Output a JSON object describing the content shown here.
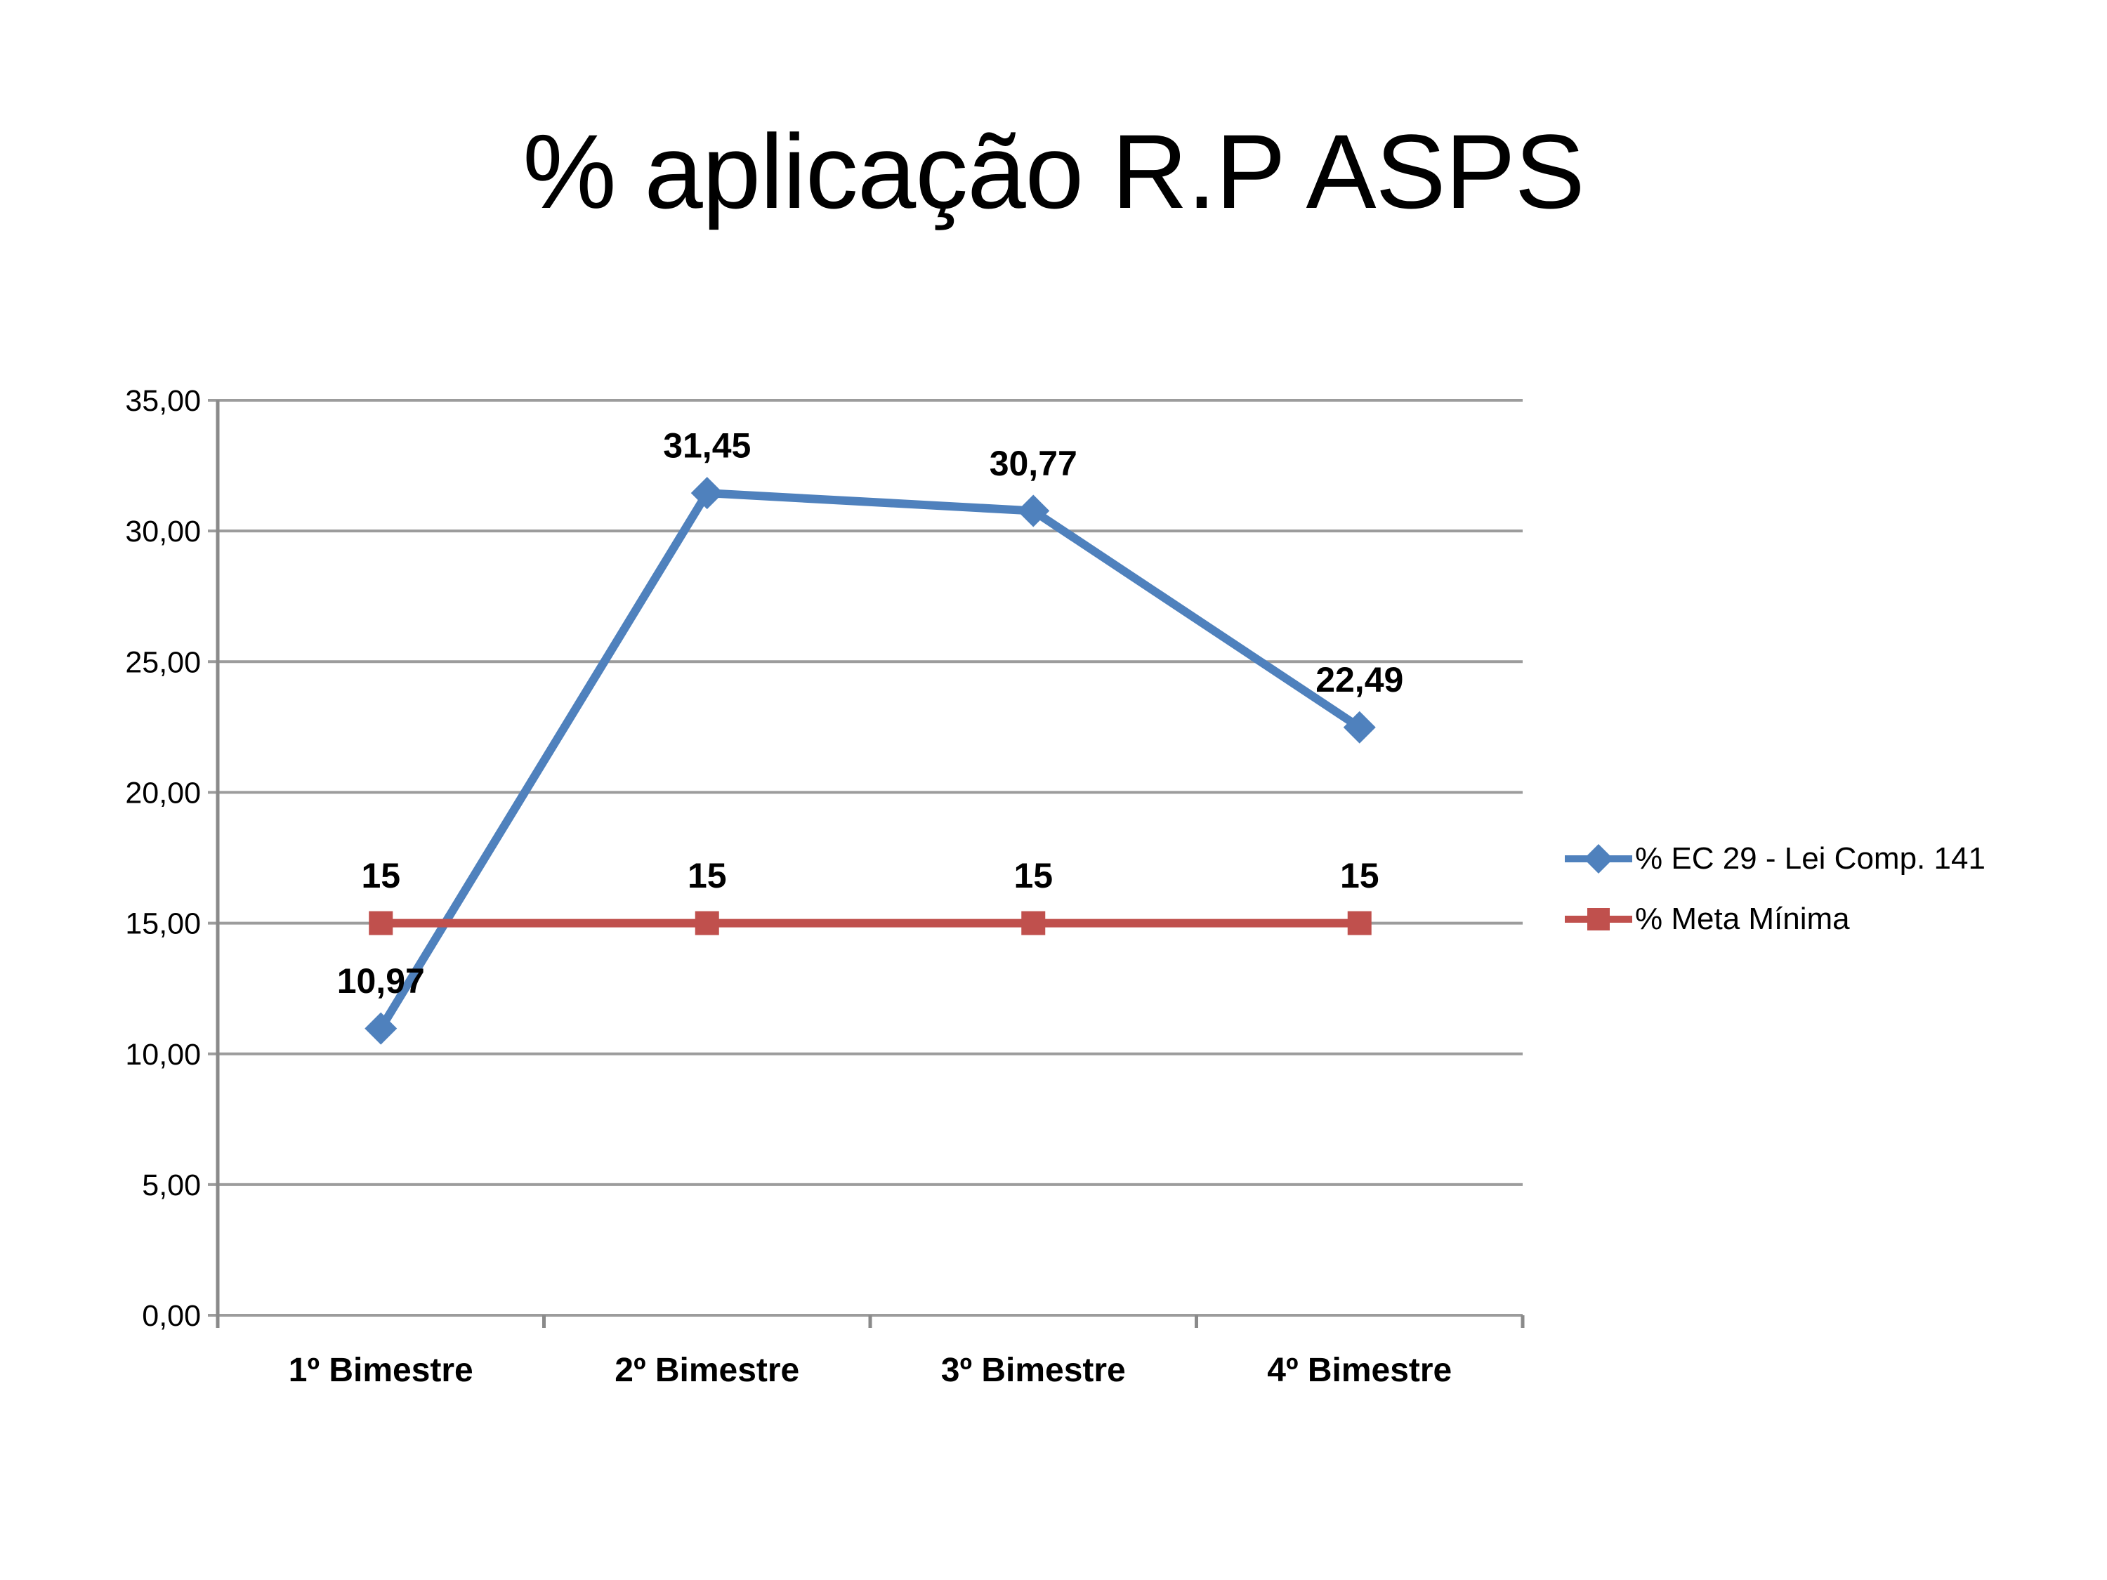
{
  "title": "% aplicação R.P ASPS",
  "colors": {
    "series1": "#4F81BD",
    "series2": "#C0504D",
    "gridline": "#9C9C9C",
    "axis": "#8A8A8A",
    "text": "#000000"
  },
  "chart_data": {
    "type": "line",
    "title": "% aplicação R.P ASPS",
    "categories": [
      "1º Bimestre",
      "2º Bimestre",
      "3º Bimestre",
      "4º Bimestre"
    ],
    "series": [
      {
        "name": "% EC 29 - Lei Comp. 141",
        "values": [
          10.97,
          31.45,
          30.77,
          22.49
        ],
        "labels": [
          "10,97",
          "31,45",
          "30,77",
          "22,49"
        ],
        "color": "#4F81BD",
        "marker": "diamond"
      },
      {
        "name": "% Meta Mínima",
        "values": [
          15,
          15,
          15,
          15
        ],
        "labels": [
          "15",
          "15",
          "15",
          "15"
        ],
        "color": "#C0504D",
        "marker": "square"
      }
    ],
    "xlabel": "",
    "ylabel": "",
    "ylim": [
      0,
      35
    ],
    "ytick_step": 5,
    "ytick_labels": [
      "0,00",
      "5,00",
      "10,00",
      "15,00",
      "20,00",
      "25,00",
      "30,00",
      "35,00"
    ],
    "grid": true,
    "legend_position": "right"
  }
}
